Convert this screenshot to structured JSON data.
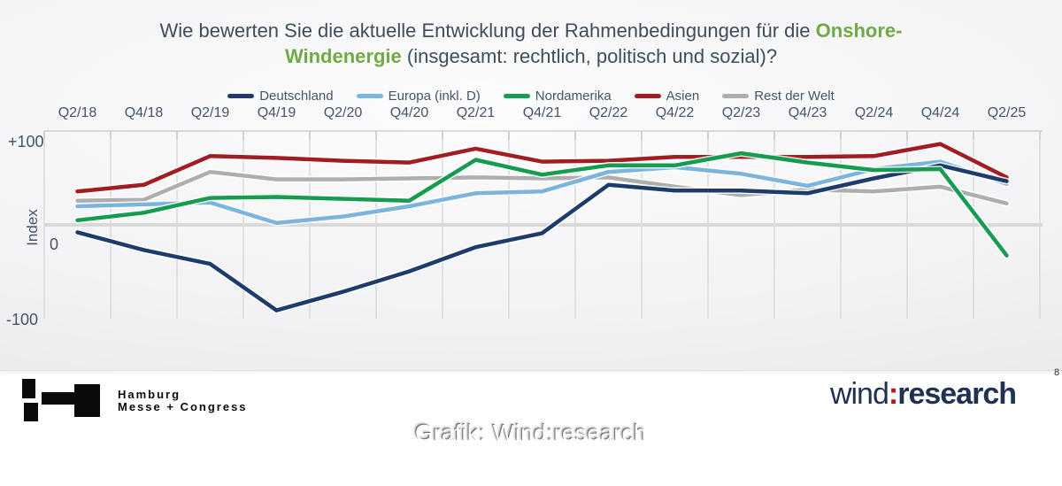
{
  "title": {
    "line1_text": "Wie bewerten Sie die aktuelle Entwicklung der Rahmenbedingungen für die ",
    "line1_highlight": "Onshore-",
    "line2_highlight": "Windenergie",
    "line2_text": " (insgesamt: rechtlich, politisch und sozial)?"
  },
  "axes": {
    "y_labels": [
      "+100",
      "0",
      "-100"
    ],
    "y_title": "Index"
  },
  "chart_data": {
    "type": "line",
    "title": "Wie bewerten Sie die aktuelle Entwicklung der Rahmenbedingungen für die Onshore-Windenergie (insgesamt: rechtlich, politisch und sozial)?",
    "ylabel": "Index",
    "ylim": [
      -100,
      100
    ],
    "y_ticks": [
      "+100",
      "0",
      "-100"
    ],
    "grid": "vertical",
    "legend_position": "top",
    "categories": [
      "Q2/18",
      "Q4/18",
      "Q2/19",
      "Q4/19",
      "Q2/20",
      "Q4/20",
      "Q2/21",
      "Q4/21",
      "Q2/22",
      "Q4/22",
      "Q2/23",
      "Q4/23",
      "Q2/24",
      "Q4/24",
      "Q2/25"
    ],
    "series": [
      {
        "name": "Deutschland",
        "color": "#1e3c6b",
        "values": [
          -8,
          -27,
          -42,
          -92,
          -72,
          -50,
          -24,
          -9,
          43,
          37,
          37,
          34,
          50,
          64,
          47
        ]
      },
      {
        "name": "Europa (inkl. D)",
        "color": "#7bb4dc",
        "values": [
          20,
          22,
          24,
          2,
          9,
          20,
          34,
          36,
          57,
          62,
          55,
          42,
          60,
          68,
          44
        ]
      },
      {
        "name": "Nordamerika",
        "color": "#169c4f",
        "values": [
          5,
          13,
          29,
          30,
          28,
          26,
          70,
          54,
          64,
          64,
          77,
          67,
          59,
          60,
          -33
        ]
      },
      {
        "name": "Asien",
        "color": "#a01d21",
        "values": [
          36,
          43,
          74,
          72,
          69,
          67,
          82,
          68,
          69,
          73,
          73,
          73,
          74,
          87,
          51
        ]
      },
      {
        "name": "Rest der Welt",
        "color": "#aeaeae",
        "values": [
          26,
          27,
          57,
          49,
          49,
          50,
          51,
          50,
          51,
          41,
          32,
          38,
          36,
          41,
          23
        ]
      }
    ],
    "draw_order": [
      4,
      3,
      1,
      0,
      2
    ]
  },
  "footer": {
    "partner_logo": {
      "line1": "Hamburg",
      "line2": "Messe + Congress"
    },
    "brand_logo": {
      "word1": "wind",
      "separator": ":",
      "word2": "research"
    },
    "caption": "Grafik: Wind:research",
    "page_number": "8"
  }
}
